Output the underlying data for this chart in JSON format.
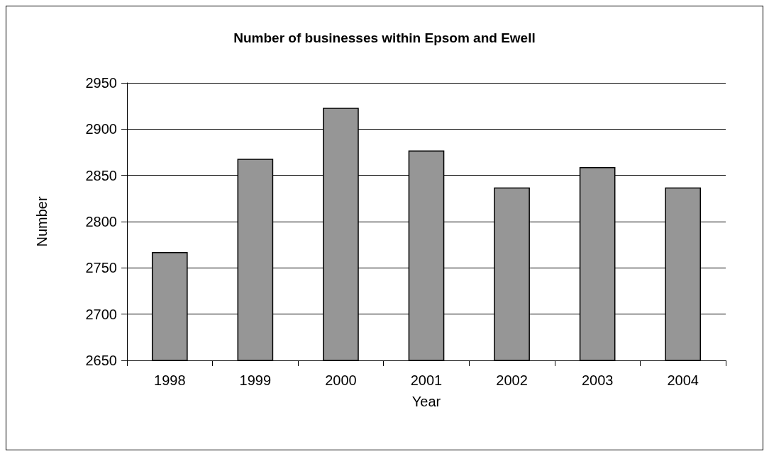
{
  "chart_data": {
    "type": "bar",
    "title": "Number of businesses within Epsom and Ewell",
    "xlabel": "Year",
    "ylabel": "Number",
    "categories": [
      "1998",
      "1999",
      "2000",
      "2001",
      "2002",
      "2003",
      "2004"
    ],
    "values": [
      2767,
      2868,
      2923,
      2877,
      2837,
      2859,
      2837
    ],
    "color": "#969696",
    "ylim": [
      2650,
      2950
    ],
    "yticks": [
      2650,
      2700,
      2750,
      2800,
      2850,
      2900,
      2950
    ],
    "grid": "y"
  }
}
